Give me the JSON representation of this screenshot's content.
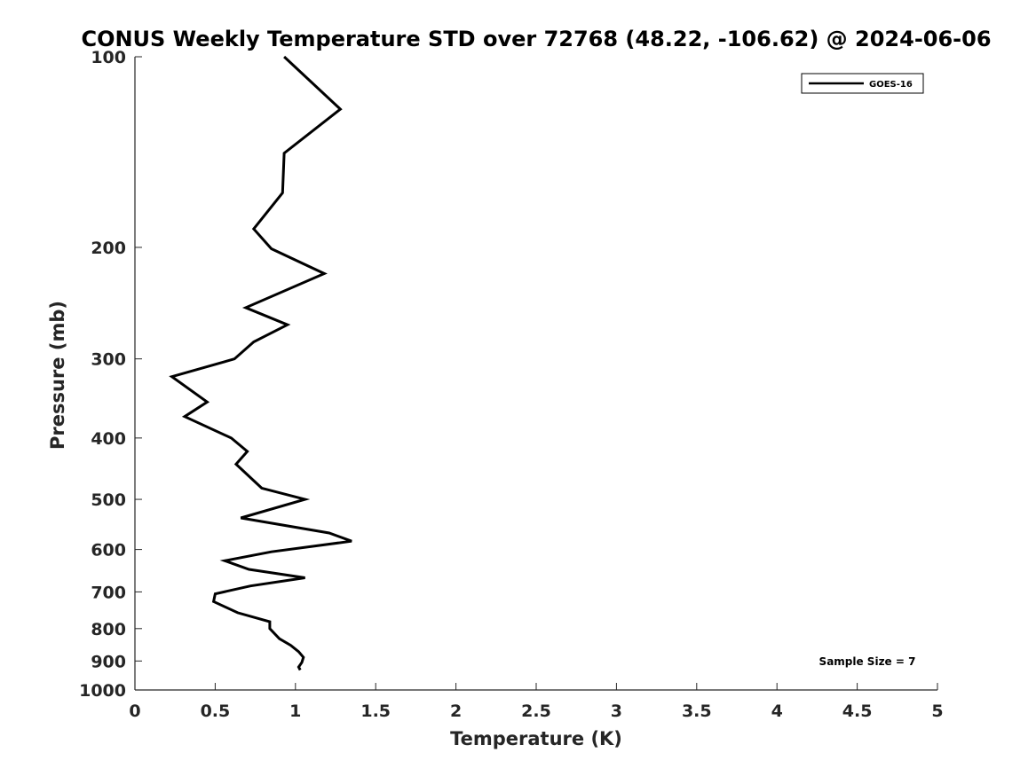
{
  "chart_data": {
    "type": "line",
    "title": "CONUS Weekly Temperature STD over 72768 (48.22, -106.62) @ 2024-06-06",
    "xlabel": "Temperature (K)",
    "ylabel": "Pressure (mb)",
    "xlim": [
      0,
      5
    ],
    "ylim": [
      100,
      1000
    ],
    "y_scale": "log",
    "y_inverted": true,
    "grid": false,
    "x_ticks": [
      0,
      0.5,
      1,
      1.5,
      2,
      2.5,
      3,
      3.5,
      4,
      4.5,
      5
    ],
    "x_tick_labels": [
      "0",
      "0.5",
      "1",
      "1.5",
      "2",
      "2.5",
      "3",
      "3.5",
      "4",
      "4.5",
      "5"
    ],
    "y_ticks": [
      100,
      200,
      300,
      400,
      500,
      600,
      700,
      800,
      900,
      1000
    ],
    "y_tick_labels": [
      "100",
      "200",
      "300",
      "400",
      "500",
      "600",
      "700",
      "800",
      "900",
      "1000"
    ],
    "legend": {
      "placement": "top-right"
    },
    "series": [
      {
        "name": "GOES-16",
        "color": "#000000",
        "points": [
          {
            "x": 0.93,
            "y": 100
          },
          {
            "x": 1.28,
            "y": 121
          },
          {
            "x": 0.93,
            "y": 142
          },
          {
            "x": 0.92,
            "y": 164
          },
          {
            "x": 0.74,
            "y": 187
          },
          {
            "x": 0.85,
            "y": 201
          },
          {
            "x": 1.18,
            "y": 220
          },
          {
            "x": 0.69,
            "y": 249
          },
          {
            "x": 0.95,
            "y": 265
          },
          {
            "x": 0.74,
            "y": 282
          },
          {
            "x": 0.62,
            "y": 300
          },
          {
            "x": 0.23,
            "y": 320
          },
          {
            "x": 0.45,
            "y": 351
          },
          {
            "x": 0.31,
            "y": 370
          },
          {
            "x": 0.6,
            "y": 400
          },
          {
            "x": 0.7,
            "y": 420
          },
          {
            "x": 0.63,
            "y": 440
          },
          {
            "x": 0.79,
            "y": 480
          },
          {
            "x": 1.06,
            "y": 500
          },
          {
            "x": 0.66,
            "y": 535
          },
          {
            "x": 1.21,
            "y": 565
          },
          {
            "x": 1.35,
            "y": 582
          },
          {
            "x": 0.85,
            "y": 605
          },
          {
            "x": 0.56,
            "y": 625
          },
          {
            "x": 0.71,
            "y": 645
          },
          {
            "x": 1.06,
            "y": 665
          },
          {
            "x": 0.72,
            "y": 685
          },
          {
            "x": 0.5,
            "y": 705
          },
          {
            "x": 0.49,
            "y": 725
          },
          {
            "x": 0.64,
            "y": 755
          },
          {
            "x": 0.84,
            "y": 780
          },
          {
            "x": 0.84,
            "y": 800
          },
          {
            "x": 0.9,
            "y": 830
          },
          {
            "x": 0.97,
            "y": 850
          },
          {
            "x": 1.02,
            "y": 870
          },
          {
            "x": 1.05,
            "y": 888
          },
          {
            "x": 1.04,
            "y": 905
          },
          {
            "x": 1.02,
            "y": 920
          },
          {
            "x": 1.03,
            "y": 930
          }
        ]
      }
    ],
    "annotations": [
      {
        "text": "Sample Size = 7",
        "placement": "bottom-right"
      }
    ]
  }
}
